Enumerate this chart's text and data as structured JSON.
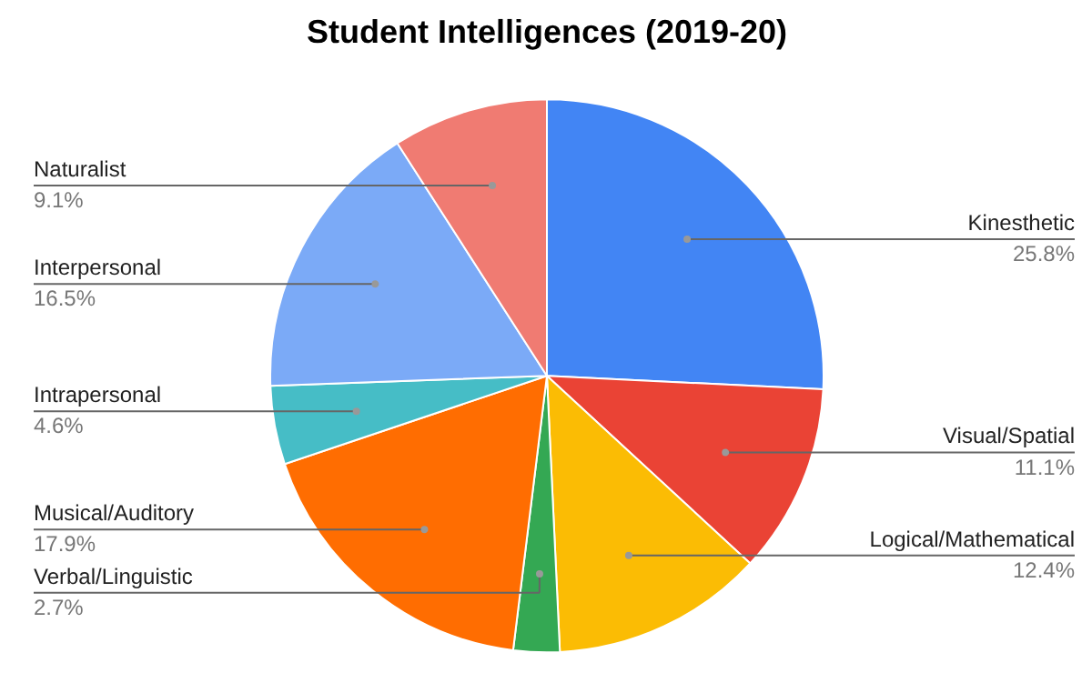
{
  "chart_data": {
    "type": "pie",
    "title": "Student Intelligences (2019-20)",
    "categories": [
      "Kinesthetic",
      "Visual/Spatial",
      "Logical/Mathematical",
      "Verbal/Linguistic",
      "Musical/Auditory",
      "Intrapersonal",
      "Interpersonal",
      "Naturalist"
    ],
    "values": [
      25.8,
      11.1,
      12.4,
      2.7,
      17.9,
      4.6,
      16.5,
      9.1
    ],
    "value_labels": [
      "25.8%",
      "11.1%",
      "12.4%",
      "2.7%",
      "17.9%",
      "4.6%",
      "16.5%",
      "9.1%"
    ],
    "colors": [
      "#4285f4",
      "#ea4335",
      "#fbbc04",
      "#34a853",
      "#ff6d01",
      "#46bdc6",
      "#7baaf7",
      "#f07b72"
    ]
  }
}
